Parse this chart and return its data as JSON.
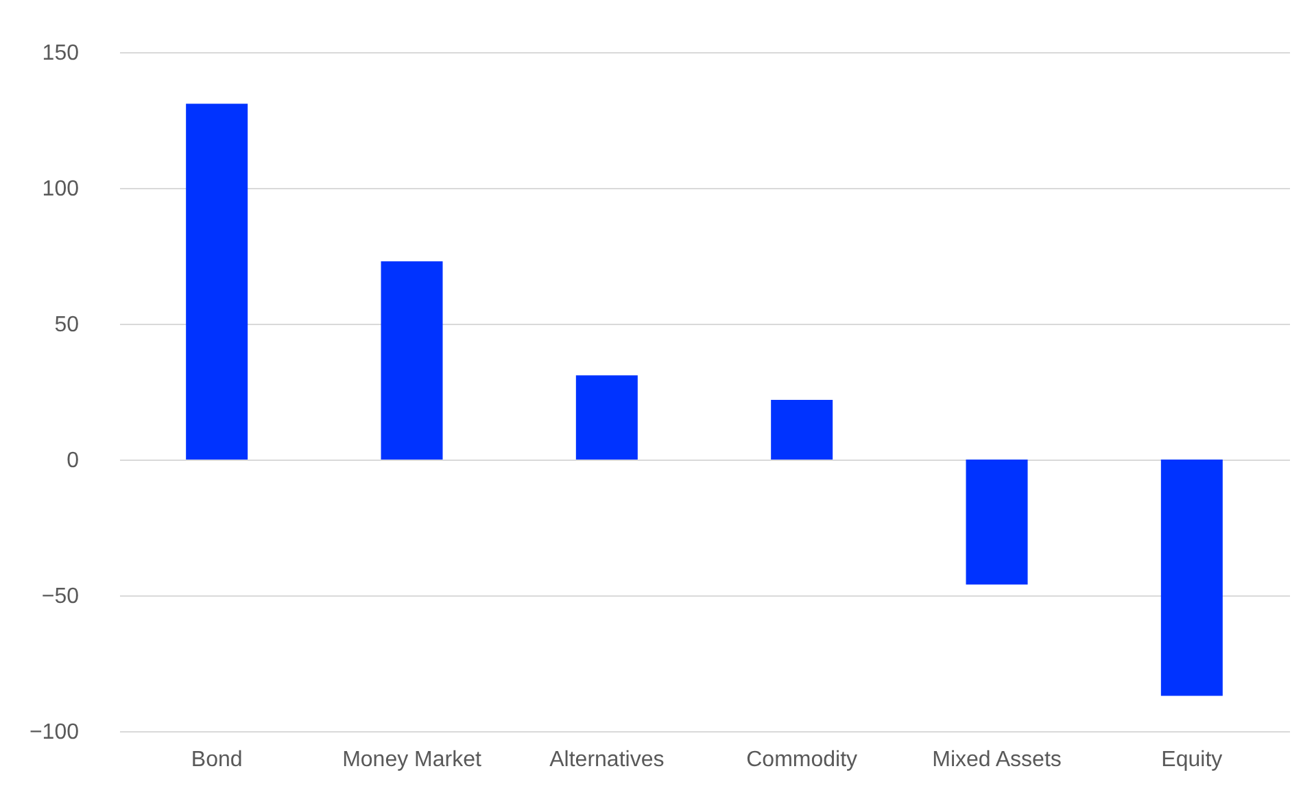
{
  "chart_data": {
    "type": "bar",
    "categories": [
      "Bond",
      "Money Market",
      "Alternatives",
      "Commodity",
      "Mixed Assets",
      "Equity"
    ],
    "values": [
      131,
      73,
      31,
      22,
      -46,
      -87
    ],
    "color": "#0033ff",
    "ylim": [
      -100,
      150
    ],
    "yticks": [
      -100,
      -50,
      0,
      50,
      100,
      150
    ],
    "grid": "y"
  }
}
